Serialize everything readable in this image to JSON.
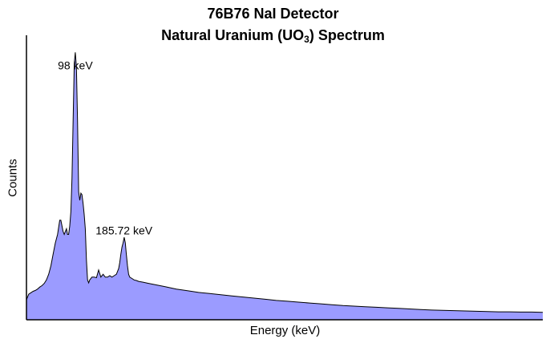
{
  "title_line1": "76B76 NaI Detector",
  "title_line2_prefix": "Natural Uranium (UO",
  "title_line2_sub": "3",
  "title_line2_suffix": ") Spectrum",
  "colors": {
    "fill": "#9b9bff",
    "outline": "#000000",
    "axis": "#000000"
  },
  "chart_data": {
    "type": "area",
    "xlabel": "Energy (keV)",
    "ylabel": "Counts",
    "grid": false,
    "x_ticks_visible": false,
    "y_ticks_visible": false,
    "ylim": [
      0,
      1000
    ],
    "annotations": [
      {
        "label": "98 keV",
        "x": 98,
        "y": 880
      },
      {
        "label": "185.72 keV",
        "x": 185.72,
        "y": 300
      }
    ],
    "series": [
      {
        "name": "",
        "x": [
          10,
          14,
          18,
          22,
          26,
          30,
          34,
          38,
          42,
          46,
          50,
          54,
          58,
          62,
          66,
          70,
          72,
          74,
          76,
          78,
          80,
          82,
          84,
          86,
          88,
          90,
          92,
          94,
          96,
          98,
          100,
          102,
          104,
          106,
          108,
          110,
          112,
          114,
          116,
          118,
          120,
          122,
          124,
          128,
          132,
          136,
          140,
          144,
          148,
          152,
          156,
          160,
          164,
          168,
          172,
          176,
          178,
          180,
          182,
          184,
          186,
          188,
          190,
          192,
          194,
          196,
          200,
          204,
          208,
          212,
          220,
          230,
          240,
          250,
          260,
          270,
          280,
          300,
          320,
          340,
          360,
          380,
          400,
          420,
          440,
          460,
          480,
          500,
          520,
          540,
          560,
          580,
          600,
          620,
          640,
          660,
          680,
          700,
          720,
          740,
          760,
          780,
          800,
          820,
          840,
          860,
          880,
          900,
          920,
          940
        ],
        "y": [
          70,
          90,
          95,
          100,
          103,
          108,
          115,
          120,
          128,
          140,
          160,
          190,
          230,
          270,
          300,
          350,
          350,
          330,
          310,
          300,
          310,
          320,
          300,
          300,
          330,
          380,
          500,
          700,
          900,
          940,
          890,
          700,
          450,
          420,
          445,
          440,
          410,
          370,
          320,
          210,
          140,
          130,
          140,
          150,
          150,
          148,
          175,
          150,
          160,
          150,
          150,
          155,
          150,
          155,
          160,
          180,
          200,
          230,
          255,
          270,
          290,
          270,
          230,
          190,
          160,
          150,
          145,
          140,
          138,
          135,
          132,
          128,
          124,
          120,
          116,
          112,
          108,
          102,
          96,
          92,
          88,
          84,
          80,
          76,
          72,
          68,
          65,
          62,
          59,
          56,
          53,
          50,
          48,
          46,
          44,
          42,
          40,
          38,
          36,
          34,
          33,
          32,
          31,
          30,
          29,
          28,
          28,
          27,
          27,
          26
        ]
      }
    ],
    "xlim": [
      10,
      940
    ]
  }
}
